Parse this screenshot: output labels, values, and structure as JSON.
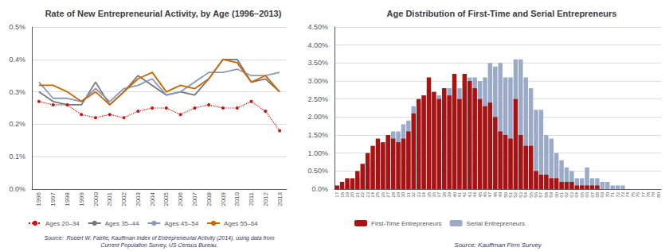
{
  "chart_data": [
    {
      "type": "line",
      "title": "Rate of New Entrepreneurial Activity, by Age (1996–2013)",
      "categories": [
        1996,
        1997,
        1998,
        1999,
        2000,
        2001,
        2002,
        2003,
        2004,
        2005,
        2006,
        2007,
        2008,
        2009,
        2010,
        2011,
        2012,
        2013
      ],
      "series": [
        {
          "name": "Ages 20–34",
          "color": "#cc1111",
          "marker": "circle",
          "line_style": "dotted",
          "values": [
            0.0027,
            0.0026,
            0.0026,
            0.0023,
            0.0022,
            0.0023,
            0.0022,
            0.0024,
            0.0025,
            0.0025,
            0.0023,
            0.0025,
            0.0026,
            0.0025,
            0.0025,
            0.0027,
            0.0024,
            0.0018
          ]
        },
        {
          "name": "Ages 35–44",
          "color": "#777777",
          "marker": "none",
          "line_style": "solid",
          "values": [
            0.003,
            0.0027,
            0.0026,
            0.0026,
            0.0033,
            0.0026,
            0.003,
            0.0035,
            0.0032,
            0.0029,
            0.003,
            0.0029,
            0.0034,
            0.004,
            0.004,
            0.0033,
            0.0034,
            0.003
          ]
        },
        {
          "name": "Ages 45–54",
          "color": "#8899bb",
          "marker": "none",
          "line_style": "solid",
          "values": [
            0.0033,
            0.0028,
            0.0028,
            0.0027,
            0.0031,
            0.0027,
            0.0031,
            0.0032,
            0.0034,
            0.0029,
            0.003,
            0.0033,
            0.0036,
            0.0036,
            0.0037,
            0.0035,
            0.0035,
            0.0036
          ]
        },
        {
          "name": "Ages 55–64",
          "color": "#cc6600",
          "marker": "none",
          "line_style": "solid",
          "values": [
            0.0032,
            0.0032,
            0.003,
            0.0027,
            0.003,
            0.0026,
            0.003,
            0.0034,
            0.0036,
            0.003,
            0.0032,
            0.0031,
            0.0034,
            0.004,
            0.0039,
            0.0033,
            0.0035,
            0.003
          ]
        }
      ],
      "ylim": [
        0,
        0.005
      ],
      "yticks": [
        {
          "value": 0.0,
          "label": "0.0%"
        },
        {
          "value": 0.001,
          "label": "0.1%"
        },
        {
          "value": 0.002,
          "label": "0.2%"
        },
        {
          "value": 0.003,
          "label": "0.3%"
        },
        {
          "value": 0.004,
          "label": "0.4%"
        },
        {
          "value": 0.005,
          "label": "0.5%"
        }
      ],
      "grid": true,
      "legend": "lower left",
      "annotations": [
        "Source:  Robert W. Fairlie, Kauffman Index of Entrepreneurial Activity (2014), using data from\nCurrent Population Survey, US Census Bureau."
      ]
    },
    {
      "type": "bar",
      "title": "Age Distribution of First-Time and Serial Entrepreneurs",
      "categories": [
        17,
        18,
        19,
        20,
        21,
        22,
        23,
        24,
        25,
        26,
        27,
        28,
        29,
        30,
        31,
        32,
        33,
        34,
        35,
        36,
        37,
        38,
        39,
        40,
        41,
        42,
        43,
        44,
        45,
        46,
        47,
        48,
        49,
        50,
        51,
        52,
        53,
        54,
        55,
        56,
        57,
        58,
        59,
        60,
        61,
        62,
        63,
        64,
        65,
        66,
        67,
        68,
        69,
        70,
        71,
        72,
        73,
        74,
        75,
        76,
        77,
        78,
        79,
        80
      ],
      "series": [
        {
          "name": "Serial Entrepreneurs",
          "color": "#9aaac8",
          "values": [
            0.0,
            0.001,
            0.001,
            0.002,
            0.003,
            0.004,
            0.006,
            0.008,
            0.012,
            0.012,
            0.015,
            0.016,
            0.016,
            0.018,
            0.019,
            0.023,
            0.024,
            0.026,
            0.028,
            0.025,
            0.026,
            0.028,
            0.028,
            0.03,
            0.028,
            0.03,
            0.031,
            0.031,
            0.03,
            0.031,
            0.035,
            0.034,
            0.035,
            0.031,
            0.031,
            0.036,
            0.036,
            0.031,
            0.028,
            0.022,
            0.022,
            0.015,
            0.014,
            0.01,
            0.008,
            0.006,
            0.005,
            0.003,
            0.003,
            0.006,
            0.003,
            0.003,
            0.002,
            0.002,
            0.001,
            0.001,
            0.001,
            0.0,
            0.0,
            0.0,
            0.0,
            0.0,
            0.0,
            0.0
          ]
        },
        {
          "name": "First-Time Entrepreneurs",
          "color": "#aa1111",
          "values": [
            0.001,
            0.002,
            0.003,
            0.003,
            0.005,
            0.007,
            0.01,
            0.012,
            0.014,
            0.013,
            0.015,
            0.014,
            0.013,
            0.014,
            0.016,
            0.021,
            0.025,
            0.026,
            0.031,
            0.027,
            0.025,
            0.028,
            0.026,
            0.032,
            0.025,
            0.032,
            0.03,
            0.028,
            0.025,
            0.023,
            0.024,
            0.02,
            0.016,
            0.015,
            0.014,
            0.025,
            0.015,
            0.012,
            0.012,
            0.005,
            0.004,
            0.004,
            0.003,
            0.003,
            0.002,
            0.002,
            0.002,
            0.001,
            0.001,
            0.001,
            0.001,
            0.001,
            0.0,
            0.0,
            0.0,
            0.0,
            0.0,
            0.0,
            0.0,
            0.0,
            0.0,
            0.0,
            0.0,
            0.0
          ]
        }
      ],
      "ylim": [
        0,
        0.045
      ],
      "yticks": [
        {
          "value": 0.0,
          "label": "0.0%"
        },
        {
          "value": 0.005,
          "label": "0.50%"
        },
        {
          "value": 0.01,
          "label": "1.00%"
        },
        {
          "value": 0.015,
          "label": "1.50%"
        },
        {
          "value": 0.02,
          "label": "2.00%"
        },
        {
          "value": 0.025,
          "label": "2.50%"
        },
        {
          "value": 0.03,
          "label": "3.00%"
        },
        {
          "value": 0.035,
          "label": "3.50%"
        },
        {
          "value": 0.04,
          "label": "4.00%"
        },
        {
          "value": 0.045,
          "label": "4.50%"
        }
      ],
      "grid": true,
      "legend": "lower left",
      "annotations": [
        "Source: Kauffman Firm Survey"
      ]
    }
  ]
}
